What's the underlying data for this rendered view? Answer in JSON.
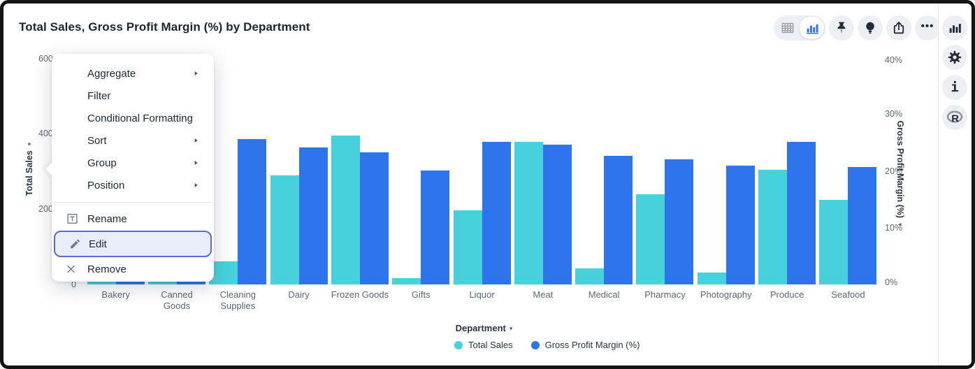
{
  "header": {
    "title": "Total Sales, Gross Profit Margin (%) by Department"
  },
  "toolbar": {
    "icons": [
      "table-view-icon",
      "chart-view-icon",
      "pin-icon",
      "lightbulb-icon",
      "share-icon",
      "more-ellipsis-icon"
    ],
    "ellipsis_label": "•••"
  },
  "right_rail": {
    "icons": [
      "chart-panel-icon",
      "settings-gear-icon",
      "info-icon",
      "r-logo-icon"
    ],
    "info_glyph": "i",
    "r_glyph": "R"
  },
  "menu": {
    "groups": [
      {
        "items": [
          {
            "label": "Aggregate",
            "submenu": true
          },
          {
            "label": "Filter",
            "submenu": false
          },
          {
            "label": "Conditional Formatting",
            "submenu": false
          },
          {
            "label": "Sort",
            "submenu": true
          },
          {
            "label": "Group",
            "submenu": true
          },
          {
            "label": "Position",
            "submenu": true
          }
        ]
      },
      {
        "items": [
          {
            "label": "Rename",
            "icon": "rename-icon"
          },
          {
            "label": "Edit",
            "icon": "pencil-icon",
            "highlighted": true
          },
          {
            "label": "Remove",
            "icon": "x-icon"
          }
        ]
      }
    ]
  },
  "chart_data": {
    "type": "bar",
    "title": "Total Sales, Gross Profit Margin (%) by Department",
    "categories": [
      "Bakery",
      "Canned Goods",
      "Cleaning Supplies",
      "Dairy",
      "Frozen Goods",
      "Gifts",
      "Liquor",
      "Meat",
      "Medical",
      "Pharmacy",
      "Photography",
      "Produce",
      "Seafood"
    ],
    "series": [
      {
        "name": "Total Sales",
        "axis": "left",
        "color": "#47d1dd",
        "values": [
          9,
          9,
          61,
          290,
          397,
          17,
          198,
          380,
          43,
          240,
          32,
          306,
          225
        ]
      },
      {
        "name": "Gross Profit Margin (%)",
        "axis": "right",
        "color": "#2e74ea",
        "values": [
          0.8,
          0.8,
          25.8,
          24.3,
          23.5,
          20.3,
          25.4,
          24.8,
          22.9,
          22.3,
          21.1,
          25.3,
          20.9
        ]
      }
    ],
    "left_axis": {
      "label": "Total Sales",
      "ticks": [
        "600",
        "400",
        "200",
        "0"
      ],
      "range": [
        0,
        600
      ]
    },
    "right_axis": {
      "label": "Gross Profit Margin (%)",
      "ticks": [
        "40%",
        "30%",
        "20%",
        "10%",
        "0%"
      ],
      "range": [
        0,
        40
      ]
    },
    "xlabel": "Department",
    "grid": false,
    "legend_position": "bottom",
    "note": "Bakery and Canned Goods bars are mostly hidden behind the open context menu; values estimated from visible slivers."
  },
  "legend": {
    "items": [
      {
        "label": "Total Sales",
        "color": "#47d1dd"
      },
      {
        "label": "Gross Profit Margin (%)",
        "color": "#2e74ea"
      }
    ]
  },
  "x_axis_label": "Department",
  "arrow_glyph": "▾"
}
